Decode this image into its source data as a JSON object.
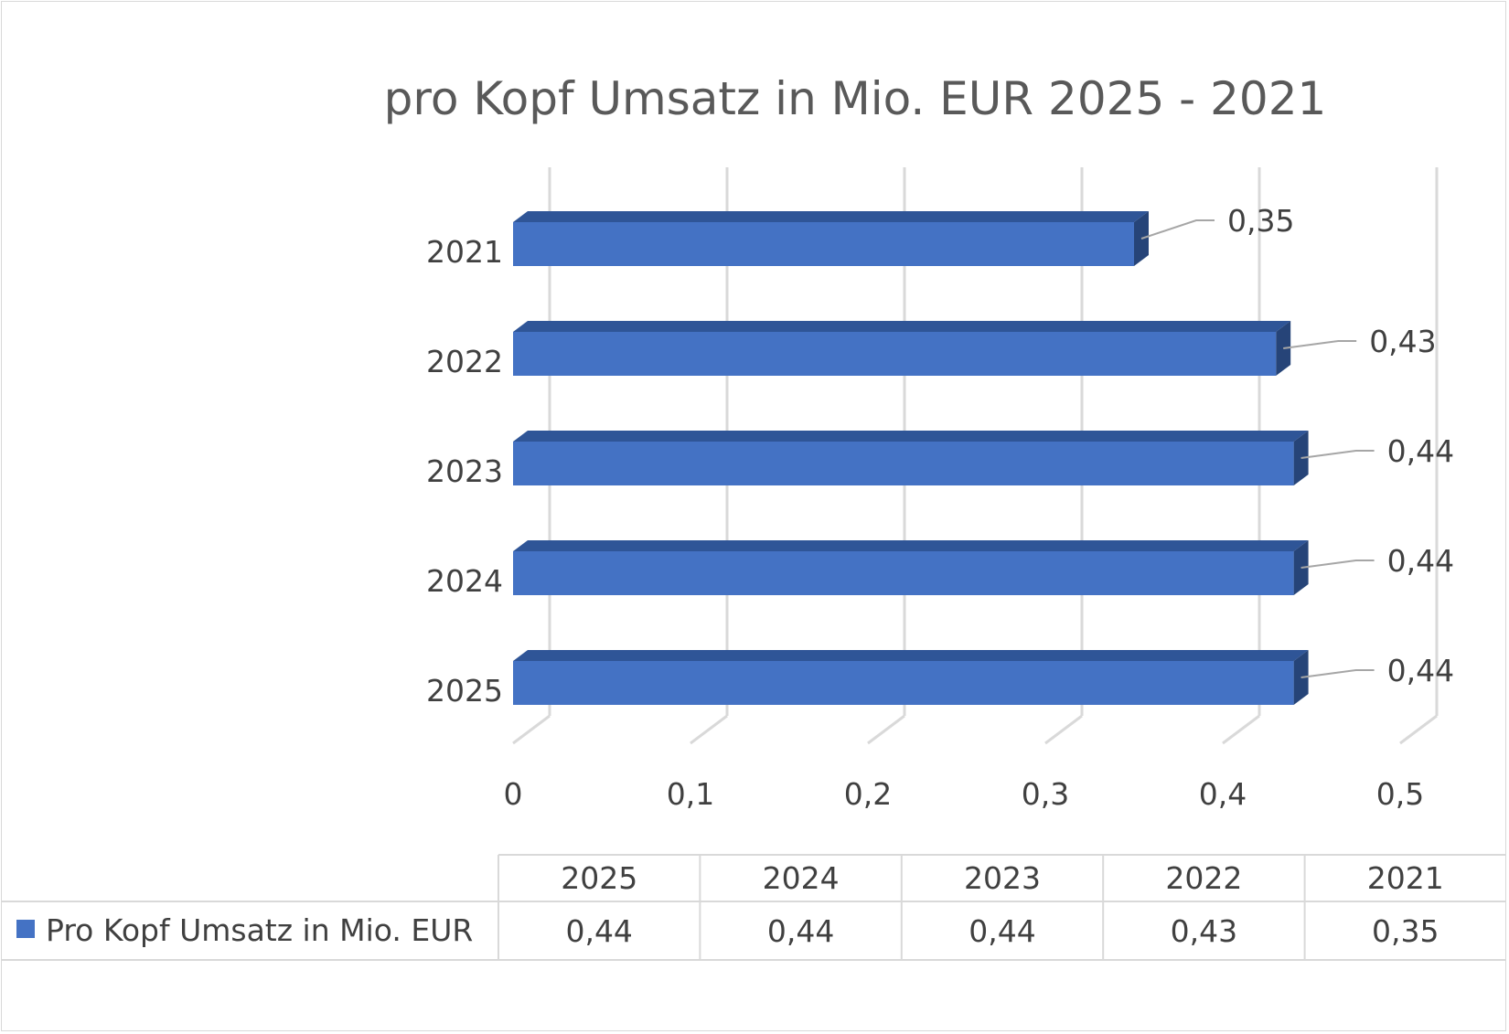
{
  "chart_data": {
    "type": "bar",
    "orientation": "horizontal",
    "style": "3d",
    "title": "pro Kopf Umsatz in Mio. EUR 2025 - 2021",
    "categories": [
      "2025",
      "2024",
      "2023",
      "2022",
      "2021"
    ],
    "series": [
      {
        "name": "Pro Kopf Umsatz in Mio. EUR",
        "values": [
          0.44,
          0.44,
          0.44,
          0.43,
          0.35
        ],
        "color": "#4472c4"
      }
    ],
    "data_labels": [
      "0,44",
      "0,44",
      "0,44",
      "0,43",
      "0,35"
    ],
    "x_ticks": [
      "0",
      "0,1",
      "0,2",
      "0,3",
      "0,4",
      "0,5"
    ],
    "xlim": [
      0,
      0.5
    ],
    "xlabel": "",
    "ylabel": "",
    "grid": true,
    "legend": "data table below chart",
    "data_table": {
      "headers": [
        "2025",
        "2024",
        "2023",
        "2022",
        "2021"
      ],
      "row_label": "Pro Kopf Umsatz in Mio. EUR",
      "values": [
        "0,44",
        "0,44",
        "0,44",
        "0,43",
        "0,35"
      ]
    }
  }
}
